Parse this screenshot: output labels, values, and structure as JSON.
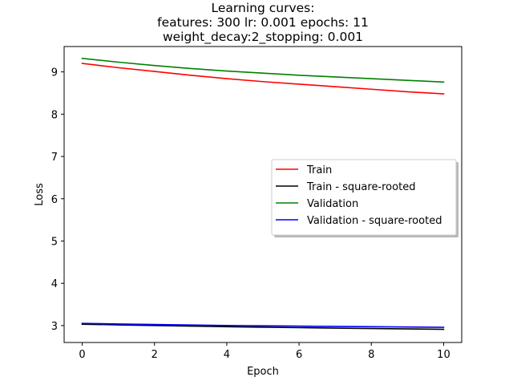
{
  "chart_data": {
    "type": "line",
    "title": [
      "Learning curves:",
      "features: 300 lr: 0.001 epochs: 11",
      "weight_decay:2_stopping: 0.001"
    ],
    "xlabel": "Epoch",
    "ylabel": "Loss",
    "xlim": [
      -0.5,
      10.5
    ],
    "ylim": [
      2.6,
      9.6
    ],
    "xticks": [
      0,
      2,
      4,
      6,
      8,
      10
    ],
    "yticks": [
      3,
      4,
      5,
      6,
      7,
      8,
      9
    ],
    "grid": false,
    "legend_position": "center-right",
    "x": [
      0,
      1,
      2,
      3,
      4,
      5,
      6,
      7,
      8,
      9,
      10
    ],
    "series": [
      {
        "name": "Train",
        "color": "#ff0000",
        "values": [
          9.2,
          9.1,
          9.01,
          8.92,
          8.84,
          8.77,
          8.71,
          8.65,
          8.59,
          8.53,
          8.48
        ]
      },
      {
        "name": "Train - square-rooted",
        "color": "#000000",
        "values": [
          3.033,
          3.017,
          3.002,
          2.987,
          2.974,
          2.962,
          2.951,
          2.941,
          2.931,
          2.921,
          2.912
        ]
      },
      {
        "name": "Validation",
        "color": "#008000",
        "values": [
          9.32,
          9.23,
          9.15,
          9.08,
          9.02,
          8.97,
          8.92,
          8.88,
          8.84,
          8.8,
          8.76
        ]
      },
      {
        "name": "Validation - square-rooted",
        "color": "#0000ff",
        "values": [
          3.053,
          3.038,
          3.025,
          3.013,
          3.003,
          2.995,
          2.987,
          2.98,
          2.973,
          2.966,
          2.96
        ]
      }
    ]
  }
}
